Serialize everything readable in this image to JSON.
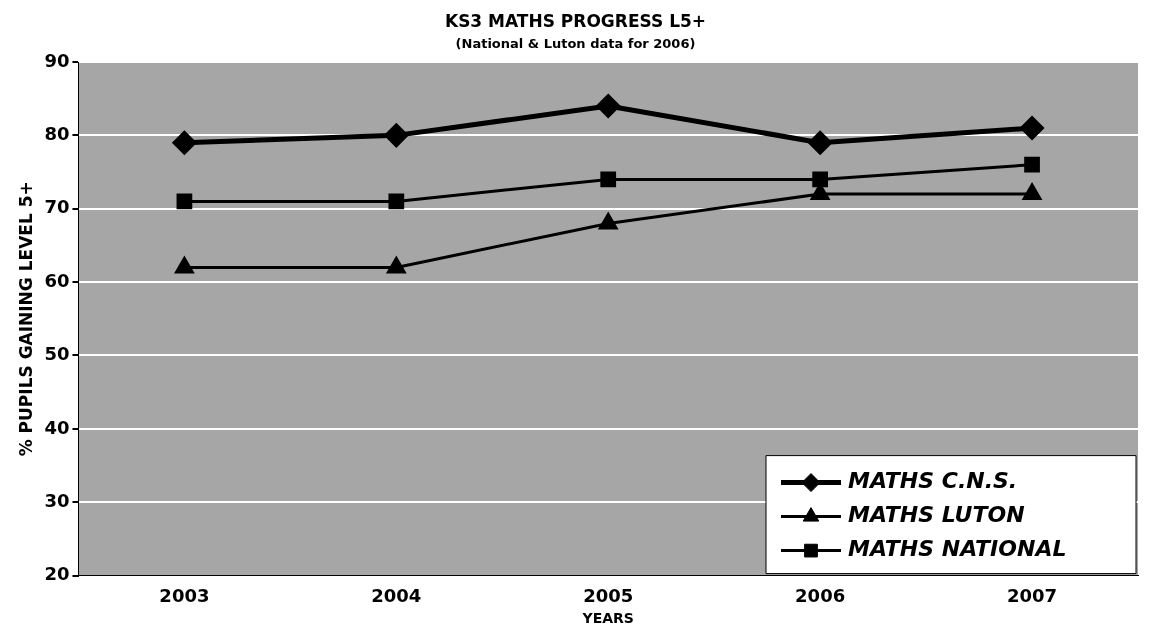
{
  "chart_data": {
    "type": "line",
    "title": "KS3 MATHS PROGRESS L5+",
    "subtitle": "(National & Luton data for 2006)",
    "xlabel": "YEARS",
    "ylabel": "% PUPILS GAINING LEVEL 5+",
    "categories": [
      "2003",
      "2004",
      "2005",
      "2006",
      "2007"
    ],
    "series": [
      {
        "name": "MATHS C.N.S.",
        "color": "#000000",
        "marker": "diamond",
        "values": [
          79,
          80,
          84,
          79,
          81
        ]
      },
      {
        "name": "MATHS LUTON",
        "color": "#000000",
        "marker": "triangle",
        "values": [
          62,
          62,
          68,
          72,
          72
        ]
      },
      {
        "name": "MATHS NATIONAL",
        "color": "#000000",
        "marker": "square",
        "values": [
          71,
          71,
          74,
          74,
          76
        ]
      }
    ],
    "ylim": [
      20,
      90
    ],
    "yticks": [
      20,
      30,
      40,
      50,
      60,
      70,
      80,
      90
    ],
    "grid": "y",
    "legend": "bottom right"
  }
}
